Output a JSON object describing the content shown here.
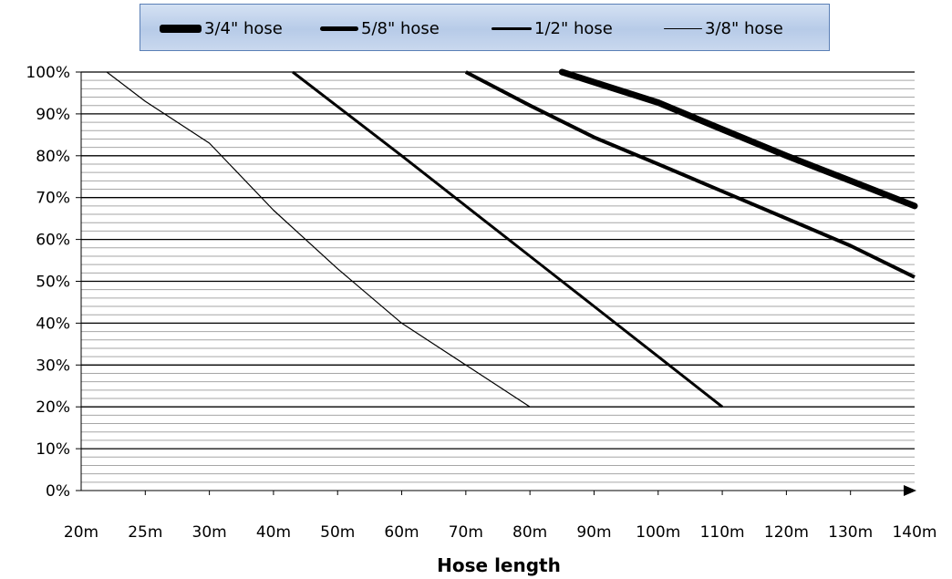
{
  "chart_data": {
    "type": "line",
    "xlabel": "Hose length",
    "ylabel": "",
    "title": "",
    "categories": [
      "20m",
      "25m",
      "30m",
      "40m",
      "50m",
      "60m",
      "70m",
      "80m",
      "90m",
      "100m",
      "110m",
      "120m",
      "130m",
      "140m"
    ],
    "y_ticks": [
      "0%",
      "10%",
      "20%",
      "30%",
      "40%",
      "50%",
      "60%",
      "70%",
      "80%",
      "90%",
      "100%"
    ],
    "ylim": [
      0,
      100
    ],
    "grid": "horizontal major and minor gridlines",
    "legend_position": "top",
    "series": [
      {
        "name": "3/4\" hose",
        "line_width": "heaviest",
        "points": [
          [
            85,
            100
          ],
          [
            100,
            92.7
          ],
          [
            110,
            86.3
          ],
          [
            120,
            80
          ],
          [
            130,
            74
          ],
          [
            140,
            68
          ]
        ]
      },
      {
        "name": "5/8\" hose",
        "line_width": "heavy",
        "points": [
          [
            70,
            100
          ],
          [
            80,
            92
          ],
          [
            90,
            84.4
          ],
          [
            100,
            78
          ],
          [
            110,
            71.5
          ],
          [
            120,
            65
          ],
          [
            130,
            58.5
          ],
          [
            140,
            51
          ]
        ]
      },
      {
        "name": "1/2\" hose",
        "line_width": "medium",
        "points": [
          [
            43,
            100
          ],
          [
            60,
            80
          ],
          [
            70,
            68
          ],
          [
            80,
            56
          ],
          [
            90,
            44
          ],
          [
            100,
            32
          ],
          [
            110,
            20
          ]
        ]
      },
      {
        "name": "3/8\" hose",
        "line_width": "thin",
        "points": [
          [
            22,
            100
          ],
          [
            25,
            93
          ],
          [
            30,
            83
          ],
          [
            40,
            67
          ],
          [
            50,
            53
          ],
          [
            60,
            40
          ],
          [
            70,
            30
          ],
          [
            80,
            20
          ]
        ]
      }
    ]
  }
}
